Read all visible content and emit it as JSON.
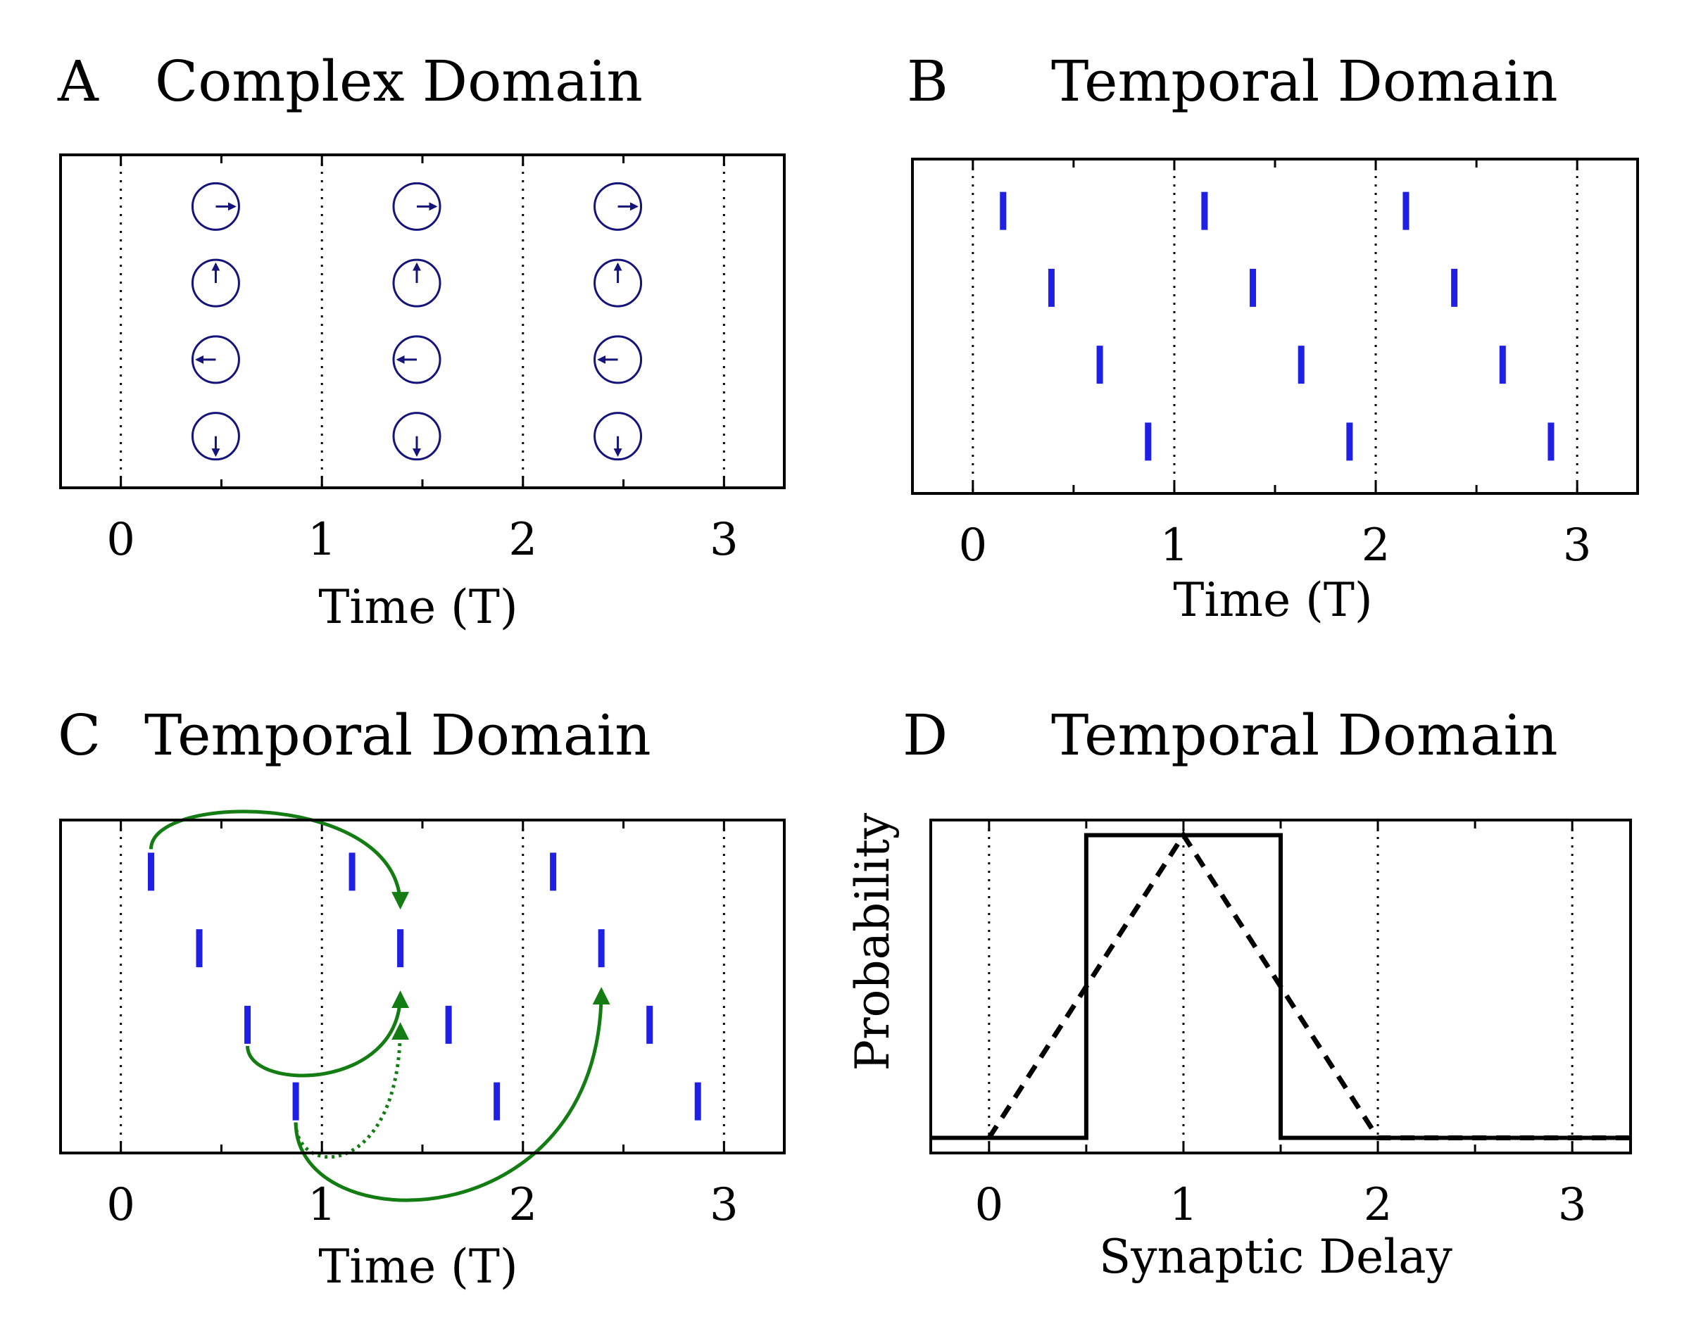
{
  "colors": {
    "spike": "#1f1fe6",
    "phasor": "#14147a",
    "arrow": "#137c13",
    "axis": "#000000",
    "background": "#ffffff"
  },
  "panels": [
    {
      "letter": "A",
      "title": "Complex Domain"
    },
    {
      "letter": "B",
      "title": "Temporal Domain"
    },
    {
      "letter": "C",
      "title": "Temporal Domain"
    },
    {
      "letter": "D",
      "title": "Temporal Domain"
    }
  ],
  "chart_data": [
    {
      "panel": "A",
      "type": "scatter",
      "title": "Complex Domain",
      "xlabel": "Time (T)",
      "ylabel": "",
      "xlim": [
        -0.3,
        3.3
      ],
      "xticks": [
        0,
        1,
        2,
        3
      ],
      "xtick_labels": [
        "0",
        "1",
        "2",
        "3"
      ],
      "minor_ticks": [
        0.5,
        1.5,
        2.5
      ],
      "vlines_dotted": [
        0,
        1,
        2,
        3
      ],
      "phasors": [
        {
          "row": 0,
          "angle_deg": 0
        },
        {
          "row": 1,
          "angle_deg": 90
        },
        {
          "row": 2,
          "angle_deg": 180
        },
        {
          "row": 3,
          "angle_deg": 270
        }
      ],
      "phasor_x": [
        0.5,
        1.5,
        2.5
      ]
    },
    {
      "panel": "B",
      "type": "scatter",
      "title": "Temporal Domain",
      "xlabel": "Time (T)",
      "ylabel": "",
      "xlim": [
        -0.3,
        3.3
      ],
      "xticks": [
        0,
        1,
        2,
        3
      ],
      "xtick_labels": [
        "0",
        "1",
        "2",
        "3"
      ],
      "minor_ticks": [
        0.5,
        1.5,
        2.5
      ],
      "vlines_dotted": [
        0,
        1,
        2,
        3
      ],
      "spike_offsets": [
        0.15,
        0.39,
        0.63,
        0.87
      ],
      "periods": [
        0,
        1,
        2
      ]
    },
    {
      "panel": "C",
      "type": "scatter",
      "title": "Temporal Domain",
      "xlabel": "Time (T)",
      "ylabel": "",
      "xlim": [
        -0.3,
        3.3
      ],
      "xticks": [
        0,
        1,
        2,
        3
      ],
      "xtick_labels": [
        "0",
        "1",
        "2",
        "3"
      ],
      "minor_ticks": [
        0.5,
        1.5,
        2.5
      ],
      "vlines_dotted": [
        0,
        1,
        2,
        3
      ],
      "spikes": [
        {
          "t": 0.15,
          "row": 0
        },
        {
          "t": 1.15,
          "row": 0
        },
        {
          "t": 2.15,
          "row": 0
        },
        {
          "t": 0.39,
          "row": 1
        },
        {
          "t": 1.39,
          "row": 1
        },
        {
          "t": 2.39,
          "row": 1
        },
        {
          "t": 0.63,
          "row": 2
        },
        {
          "t": 1.63,
          "row": 2
        },
        {
          "t": 2.63,
          "row": 2
        },
        {
          "t": 0.87,
          "row": 3
        },
        {
          "t": 1.87,
          "row": 3
        },
        {
          "t": 2.87,
          "row": 3
        }
      ],
      "connections": [
        {
          "from": [
            0.15,
            0
          ],
          "to": [
            1.39,
            1
          ],
          "style": "solid"
        },
        {
          "from": [
            0.63,
            2
          ],
          "to": [
            1.39,
            1
          ],
          "style": "solid"
        },
        {
          "from": [
            0.87,
            3
          ],
          "to": [
            1.39,
            1
          ],
          "style": "dotted"
        },
        {
          "from": [
            0.87,
            3
          ],
          "to": [
            2.39,
            1
          ],
          "style": "solid"
        }
      ]
    },
    {
      "panel": "D",
      "type": "line",
      "title": "Temporal Domain",
      "xlabel": "Synaptic Delay",
      "ylabel": "Probability",
      "xlim": [
        -0.3,
        3.3
      ],
      "ylim": [
        -0.05,
        1.05
      ],
      "xticks": [
        0,
        1,
        2,
        3
      ],
      "xtick_labels": [
        "0",
        "1",
        "2",
        "3"
      ],
      "minor_ticks": [
        0.5,
        1.5,
        2.5
      ],
      "vlines_dotted": [
        0,
        1,
        2,
        3
      ],
      "series": [
        {
          "style": "solid",
          "x": [
            -0.3,
            0.5,
            0.5,
            1.5,
            1.5,
            3.3
          ],
          "y": [
            0,
            0,
            1,
            1,
            0,
            0
          ]
        },
        {
          "style": "dashed",
          "x": [
            0,
            1,
            2,
            3.3
          ],
          "y": [
            0,
            1,
            0,
            0
          ]
        }
      ]
    }
  ]
}
